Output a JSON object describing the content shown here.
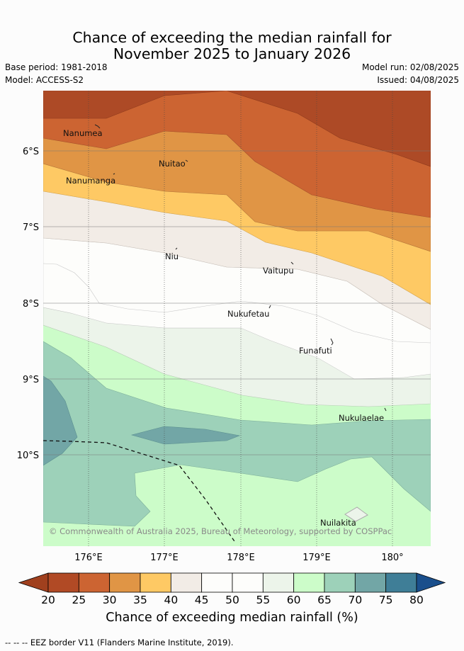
{
  "title_line1": "Chance of exceeding the median rainfall for",
  "title_line2": "November 2025 to January 2026",
  "base_period": "Base period: 1981-2018",
  "model": "Model: ACCESS-S2",
  "model_run": "Model run: 02/08/2025",
  "issued": "Issued: 04/08/2025",
  "lat_labels": [
    "6°S",
    "7°S",
    "8°S",
    "9°S",
    "10°S"
  ],
  "lon_labels": [
    "176°E",
    "177°E",
    "178°E",
    "179°E",
    "180°"
  ],
  "places": [
    {
      "name": "Nanumea"
    },
    {
      "name": "Nuitao"
    },
    {
      "name": "Nanumanga"
    },
    {
      "name": "Niu"
    },
    {
      "name": "Vaitupu"
    },
    {
      "name": "Nukufetau"
    },
    {
      "name": "Funafuti"
    },
    {
      "name": "Nukulaelae"
    },
    {
      "name": "Nuilakita"
    }
  ],
  "copyright": "© Commonwealth of Australia 2025, Bureau of Meteorology, supported by COSPPac",
  "colorbar": {
    "ticks": [
      "20",
      "25",
      "30",
      "35",
      "40",
      "45",
      "50",
      "55",
      "60",
      "65",
      "70",
      "75",
      "80"
    ],
    "colors": [
      "#a0401e",
      "#b14a25",
      "#cc6432",
      "#e09545",
      "#fec964",
      "#f2ece6",
      "#fdfdfb",
      "#fdfdfb",
      "#ecf4ea",
      "#ccfcc9",
      "#9dd1b9",
      "#72a6a6",
      "#3f7e97",
      "#1a4f8c"
    ],
    "title": "Chance of exceeding median rainfall (%)"
  },
  "footer": "-- -- -- EEZ border V11 (Flanders Marine Institute, 2019)."
}
